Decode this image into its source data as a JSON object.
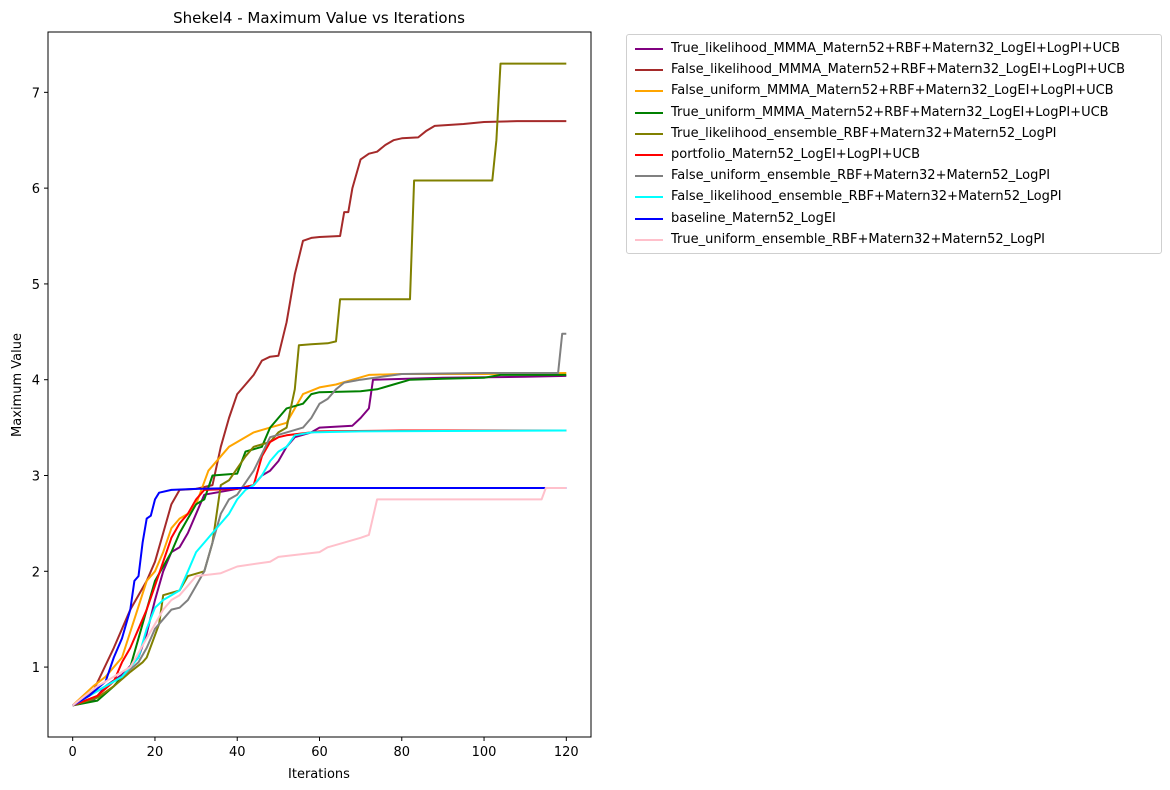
{
  "chart_data": {
    "type": "line",
    "title": "Shekel4 - Maximum Value vs Iterations",
    "xlabel": "Iterations",
    "ylabel": "Maximum Value",
    "xlim": [
      -6,
      126
    ],
    "ylim": [
      0.27,
      7.63
    ],
    "xticks": [
      0,
      20,
      40,
      60,
      80,
      100,
      120
    ],
    "yticks": [
      1,
      2,
      3,
      4,
      5,
      6,
      7
    ],
    "grid": false,
    "legend_position": "outside-right-top",
    "series": [
      {
        "name": "True_likelihood_MMMA_Matern52+RBF+Matern32_LogEI+LogPI+UCB",
        "color": "#800080",
        "points": [
          [
            0,
            0.6
          ],
          [
            5,
            0.65
          ],
          [
            8,
            0.8
          ],
          [
            12,
            0.92
          ],
          [
            16,
            1.1
          ],
          [
            18,
            1.35
          ],
          [
            20,
            1.7
          ],
          [
            22,
            2.0
          ],
          [
            24,
            2.2
          ],
          [
            26,
            2.25
          ],
          [
            28,
            2.4
          ],
          [
            30,
            2.6
          ],
          [
            32,
            2.8
          ],
          [
            40,
            2.86
          ],
          [
            44,
            2.9
          ],
          [
            46,
            3.0
          ],
          [
            48,
            3.05
          ],
          [
            50,
            3.15
          ],
          [
            52,
            3.3
          ],
          [
            54,
            3.4
          ],
          [
            58,
            3.45
          ],
          [
            60,
            3.5
          ],
          [
            68,
            3.52
          ],
          [
            70,
            3.6
          ],
          [
            72,
            3.7
          ],
          [
            73,
            4.0
          ],
          [
            90,
            4.02
          ],
          [
            110,
            4.03
          ],
          [
            120,
            4.04
          ]
        ]
      },
      {
        "name": "False_likelihood_MMMA_Matern52+RBF+Matern32_LogEI+LogPI+UCB",
        "color": "#a52a2a",
        "points": [
          [
            0,
            0.6
          ],
          [
            5,
            0.75
          ],
          [
            10,
            1.2
          ],
          [
            14,
            1.6
          ],
          [
            18,
            1.9
          ],
          [
            20,
            2.1
          ],
          [
            22,
            2.4
          ],
          [
            24,
            2.7
          ],
          [
            26,
            2.85
          ],
          [
            30,
            2.86
          ],
          [
            34,
            2.9
          ],
          [
            36,
            3.3
          ],
          [
            38,
            3.6
          ],
          [
            40,
            3.85
          ],
          [
            42,
            3.95
          ],
          [
            44,
            4.05
          ],
          [
            46,
            4.2
          ],
          [
            48,
            4.24
          ],
          [
            50,
            4.25
          ],
          [
            52,
            4.6
          ],
          [
            54,
            5.1
          ],
          [
            56,
            5.45
          ],
          [
            58,
            5.48
          ],
          [
            60,
            5.49
          ],
          [
            65,
            5.5
          ],
          [
            66,
            5.75
          ],
          [
            67,
            5.75
          ],
          [
            68,
            6.0
          ],
          [
            70,
            6.3
          ],
          [
            72,
            6.36
          ],
          [
            74,
            6.38
          ],
          [
            76,
            6.45
          ],
          [
            78,
            6.5
          ],
          [
            80,
            6.52
          ],
          [
            84,
            6.53
          ],
          [
            86,
            6.6
          ],
          [
            88,
            6.65
          ],
          [
            95,
            6.67
          ],
          [
            100,
            6.69
          ],
          [
            108,
            6.7
          ],
          [
            120,
            6.7
          ]
        ]
      },
      {
        "name": "False_uniform_MMMA_Matern52+RBF+Matern32_LogEI+LogPI+UCB",
        "color": "#ffa500",
        "points": [
          [
            0,
            0.6
          ],
          [
            5,
            0.8
          ],
          [
            8,
            0.9
          ],
          [
            12,
            1.1
          ],
          [
            15,
            1.5
          ],
          [
            18,
            1.9
          ],
          [
            20,
            2.0
          ],
          [
            22,
            2.2
          ],
          [
            24,
            2.45
          ],
          [
            26,
            2.55
          ],
          [
            28,
            2.6
          ],
          [
            30,
            2.7
          ],
          [
            33,
            3.05
          ],
          [
            36,
            3.2
          ],
          [
            38,
            3.3
          ],
          [
            40,
            3.35
          ],
          [
            44,
            3.45
          ],
          [
            48,
            3.5
          ],
          [
            52,
            3.55
          ],
          [
            56,
            3.85
          ],
          [
            60,
            3.92
          ],
          [
            64,
            3.95
          ],
          [
            68,
            4.0
          ],
          [
            72,
            4.05
          ],
          [
            80,
            4.06
          ],
          [
            100,
            4.06
          ],
          [
            120,
            4.07
          ]
        ]
      },
      {
        "name": "True_uniform_MMMA_Matern52+RBF+Matern32_LogEI+LogPI+UCB",
        "color": "#008000",
        "points": [
          [
            0,
            0.6
          ],
          [
            6,
            0.65
          ],
          [
            10,
            0.8
          ],
          [
            14,
            1.0
          ],
          [
            16,
            1.3
          ],
          [
            18,
            1.6
          ],
          [
            20,
            1.9
          ],
          [
            24,
            2.2
          ],
          [
            26,
            2.4
          ],
          [
            30,
            2.7
          ],
          [
            32,
            2.75
          ],
          [
            34,
            3.0
          ],
          [
            40,
            3.02
          ],
          [
            42,
            3.25
          ],
          [
            46,
            3.3
          ],
          [
            48,
            3.5
          ],
          [
            52,
            3.7
          ],
          [
            56,
            3.75
          ],
          [
            58,
            3.85
          ],
          [
            60,
            3.87
          ],
          [
            70,
            3.88
          ],
          [
            74,
            3.9
          ],
          [
            78,
            3.95
          ],
          [
            82,
            4.0
          ],
          [
            90,
            4.01
          ],
          [
            100,
            4.02
          ],
          [
            104,
            4.05
          ],
          [
            120,
            4.05
          ]
        ]
      },
      {
        "name": "True_likelihood_ensemble_RBF+Matern32+Matern52_LogPI",
        "color": "#808000",
        "points": [
          [
            0,
            0.6
          ],
          [
            6,
            0.68
          ],
          [
            10,
            0.8
          ],
          [
            14,
            0.95
          ],
          [
            17,
            1.05
          ],
          [
            18,
            1.1
          ],
          [
            21,
            1.45
          ],
          [
            22,
            1.75
          ],
          [
            26,
            1.8
          ],
          [
            28,
            1.95
          ],
          [
            32,
            2.0
          ],
          [
            34,
            2.3
          ],
          [
            36,
            2.9
          ],
          [
            38,
            2.95
          ],
          [
            42,
            3.2
          ],
          [
            44,
            3.3
          ],
          [
            48,
            3.35
          ],
          [
            50,
            3.45
          ],
          [
            52,
            3.5
          ],
          [
            53,
            3.7
          ],
          [
            54,
            3.9
          ],
          [
            55,
            4.36
          ],
          [
            58,
            4.37
          ],
          [
            62,
            4.38
          ],
          [
            64,
            4.4
          ],
          [
            65,
            4.84
          ],
          [
            72,
            4.84
          ],
          [
            82,
            4.84
          ],
          [
            83,
            6.08
          ],
          [
            90,
            6.08
          ],
          [
            102,
            6.08
          ],
          [
            103,
            6.5
          ],
          [
            104,
            7.3
          ],
          [
            120,
            7.3
          ]
        ]
      },
      {
        "name": "portfolio_Matern52_LogEI+LogPI+UCB",
        "color": "#ff0000",
        "points": [
          [
            0,
            0.6
          ],
          [
            6,
            0.7
          ],
          [
            10,
            0.85
          ],
          [
            12,
            1.05
          ],
          [
            14,
            1.2
          ],
          [
            16,
            1.4
          ],
          [
            18,
            1.6
          ],
          [
            20,
            1.85
          ],
          [
            22,
            2.1
          ],
          [
            24,
            2.35
          ],
          [
            26,
            2.5
          ],
          [
            28,
            2.6
          ],
          [
            30,
            2.75
          ],
          [
            32,
            2.85
          ],
          [
            40,
            2.86
          ],
          [
            44,
            2.9
          ],
          [
            46,
            3.2
          ],
          [
            48,
            3.35
          ],
          [
            50,
            3.4
          ],
          [
            52,
            3.42
          ],
          [
            60,
            3.46
          ],
          [
            80,
            3.47
          ],
          [
            120,
            3.47
          ]
        ]
      },
      {
        "name": "False_uniform_ensemble_RBF+Matern32+Matern52_LogPI",
        "color": "#808080",
        "points": [
          [
            0,
            0.6
          ],
          [
            8,
            0.8
          ],
          [
            12,
            0.9
          ],
          [
            16,
            1.05
          ],
          [
            18,
            1.2
          ],
          [
            20,
            1.4
          ],
          [
            22,
            1.5
          ],
          [
            24,
            1.6
          ],
          [
            26,
            1.62
          ],
          [
            28,
            1.7
          ],
          [
            30,
            1.85
          ],
          [
            32,
            2.0
          ],
          [
            34,
            2.3
          ],
          [
            36,
            2.6
          ],
          [
            38,
            2.75
          ],
          [
            40,
            2.8
          ],
          [
            44,
            3.05
          ],
          [
            48,
            3.4
          ],
          [
            52,
            3.45
          ],
          [
            56,
            3.5
          ],
          [
            58,
            3.6
          ],
          [
            60,
            3.75
          ],
          [
            62,
            3.8
          ],
          [
            64,
            3.9
          ],
          [
            66,
            3.97
          ],
          [
            70,
            4.0
          ],
          [
            80,
            4.06
          ],
          [
            100,
            4.07
          ],
          [
            118,
            4.07
          ],
          [
            119,
            4.48
          ],
          [
            120,
            4.48
          ]
        ]
      },
      {
        "name": "False_likelihood_ensemble_RBF+Matern32+Matern52_LogPI",
        "color": "#00ffff",
        "points": [
          [
            0,
            0.6
          ],
          [
            8,
            0.8
          ],
          [
            12,
            0.9
          ],
          [
            16,
            1.1
          ],
          [
            18,
            1.4
          ],
          [
            20,
            1.62
          ],
          [
            22,
            1.7
          ],
          [
            24,
            1.75
          ],
          [
            26,
            1.8
          ],
          [
            28,
            2.0
          ],
          [
            30,
            2.2
          ],
          [
            32,
            2.3
          ],
          [
            34,
            2.4
          ],
          [
            36,
            2.5
          ],
          [
            38,
            2.6
          ],
          [
            40,
            2.75
          ],
          [
            42,
            2.85
          ],
          [
            44,
            2.9
          ],
          [
            46,
            3.0
          ],
          [
            48,
            3.15
          ],
          [
            50,
            3.25
          ],
          [
            52,
            3.3
          ],
          [
            54,
            3.42
          ],
          [
            58,
            3.45
          ],
          [
            70,
            3.46
          ],
          [
            120,
            3.47
          ]
        ]
      },
      {
        "name": "baseline_Matern52_LogEI",
        "color": "#0000ff",
        "points": [
          [
            0,
            0.6
          ],
          [
            4,
            0.7
          ],
          [
            8,
            0.85
          ],
          [
            10,
            1.1
          ],
          [
            12,
            1.3
          ],
          [
            14,
            1.6
          ],
          [
            15,
            1.9
          ],
          [
            16,
            1.95
          ],
          [
            17,
            2.3
          ],
          [
            18,
            2.55
          ],
          [
            19,
            2.58
          ],
          [
            20,
            2.75
          ],
          [
            21,
            2.82
          ],
          [
            24,
            2.85
          ],
          [
            30,
            2.86
          ],
          [
            40,
            2.87
          ],
          [
            60,
            2.87
          ],
          [
            100,
            2.87
          ],
          [
            120,
            2.87
          ]
        ]
      },
      {
        "name": "True_uniform_ensemble_RBF+Matern32+Matern52_LogPI",
        "color": "#ffc0cb",
        "points": [
          [
            0,
            0.6
          ],
          [
            6,
            0.8
          ],
          [
            10,
            0.9
          ],
          [
            14,
            1.0
          ],
          [
            16,
            1.15
          ],
          [
            18,
            1.3
          ],
          [
            20,
            1.45
          ],
          [
            22,
            1.6
          ],
          [
            24,
            1.7
          ],
          [
            26,
            1.75
          ],
          [
            28,
            1.85
          ],
          [
            30,
            1.95
          ],
          [
            36,
            1.98
          ],
          [
            40,
            2.05
          ],
          [
            48,
            2.1
          ],
          [
            50,
            2.15
          ],
          [
            60,
            2.2
          ],
          [
            62,
            2.25
          ],
          [
            66,
            2.3
          ],
          [
            70,
            2.35
          ],
          [
            72,
            2.38
          ],
          [
            74,
            2.75
          ],
          [
            114,
            2.75
          ],
          [
            115,
            2.87
          ],
          [
            120,
            2.87
          ]
        ]
      }
    ]
  }
}
